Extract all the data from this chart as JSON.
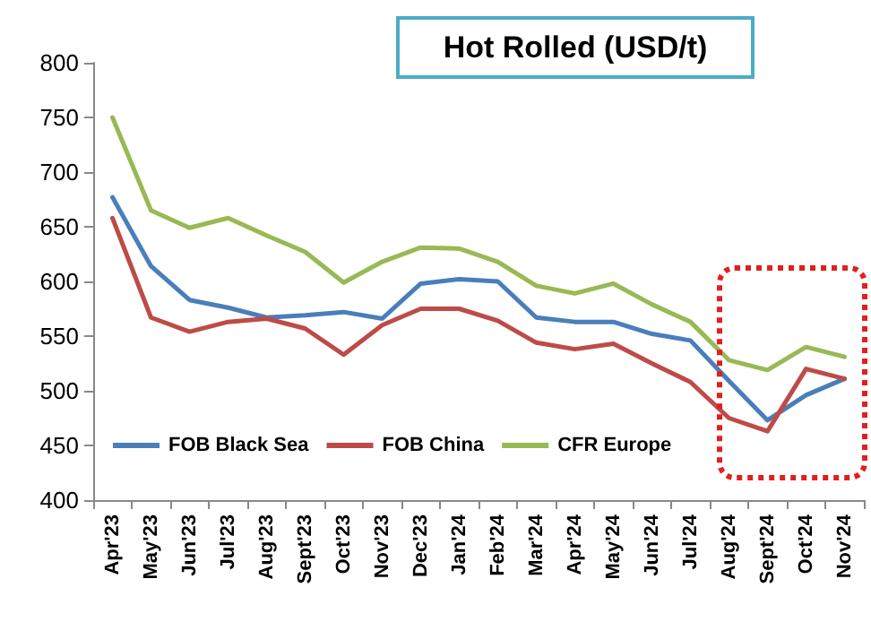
{
  "chart_data": {
    "type": "line",
    "title": "Hot Rolled (USD/t)",
    "categories": [
      "Apr'23",
      "May'23",
      "Jun'23",
      "Jul'23",
      "Aug'23",
      "Sept'23",
      "Oct'23",
      "Nov'23",
      "Dec'23",
      "Jan'24",
      "Feb'24",
      "Mar'24",
      "Apr'24",
      "May'24",
      "Jun'24",
      "Jul'24",
      "Aug'24",
      "Sept'24",
      "Oct'24",
      "Nov'24"
    ],
    "series": [
      {
        "name": "FOB Black Sea",
        "color": "#4a7ebb",
        "values": [
          677,
          614,
          583,
          576,
          567,
          569,
          572,
          566,
          598,
          602,
          600,
          567,
          563,
          563,
          552,
          546,
          509,
          473,
          496,
          511
        ]
      },
      {
        "name": "FOB China",
        "color": "#be4b48",
        "values": [
          658,
          567,
          554,
          563,
          566,
          557,
          533,
          560,
          575,
          575,
          564,
          544,
          538,
          543,
          525,
          508,
          475,
          463,
          520,
          511
        ]
      },
      {
        "name": "CFR Europe",
        "color": "#98b954",
        "values": [
          750,
          665,
          649,
          658,
          642,
          627,
          599,
          618,
          631,
          630,
          618,
          596,
          589,
          598,
          579,
          563,
          528,
          519,
          540,
          531
        ]
      }
    ],
    "ylim": [
      400,
      800
    ],
    "yticks": [
      400,
      450,
      500,
      550,
      600,
      650,
      700,
      750,
      800
    ],
    "grid": false,
    "legend": "bottom left",
    "marker": "none",
    "line_style": "solid"
  }
}
